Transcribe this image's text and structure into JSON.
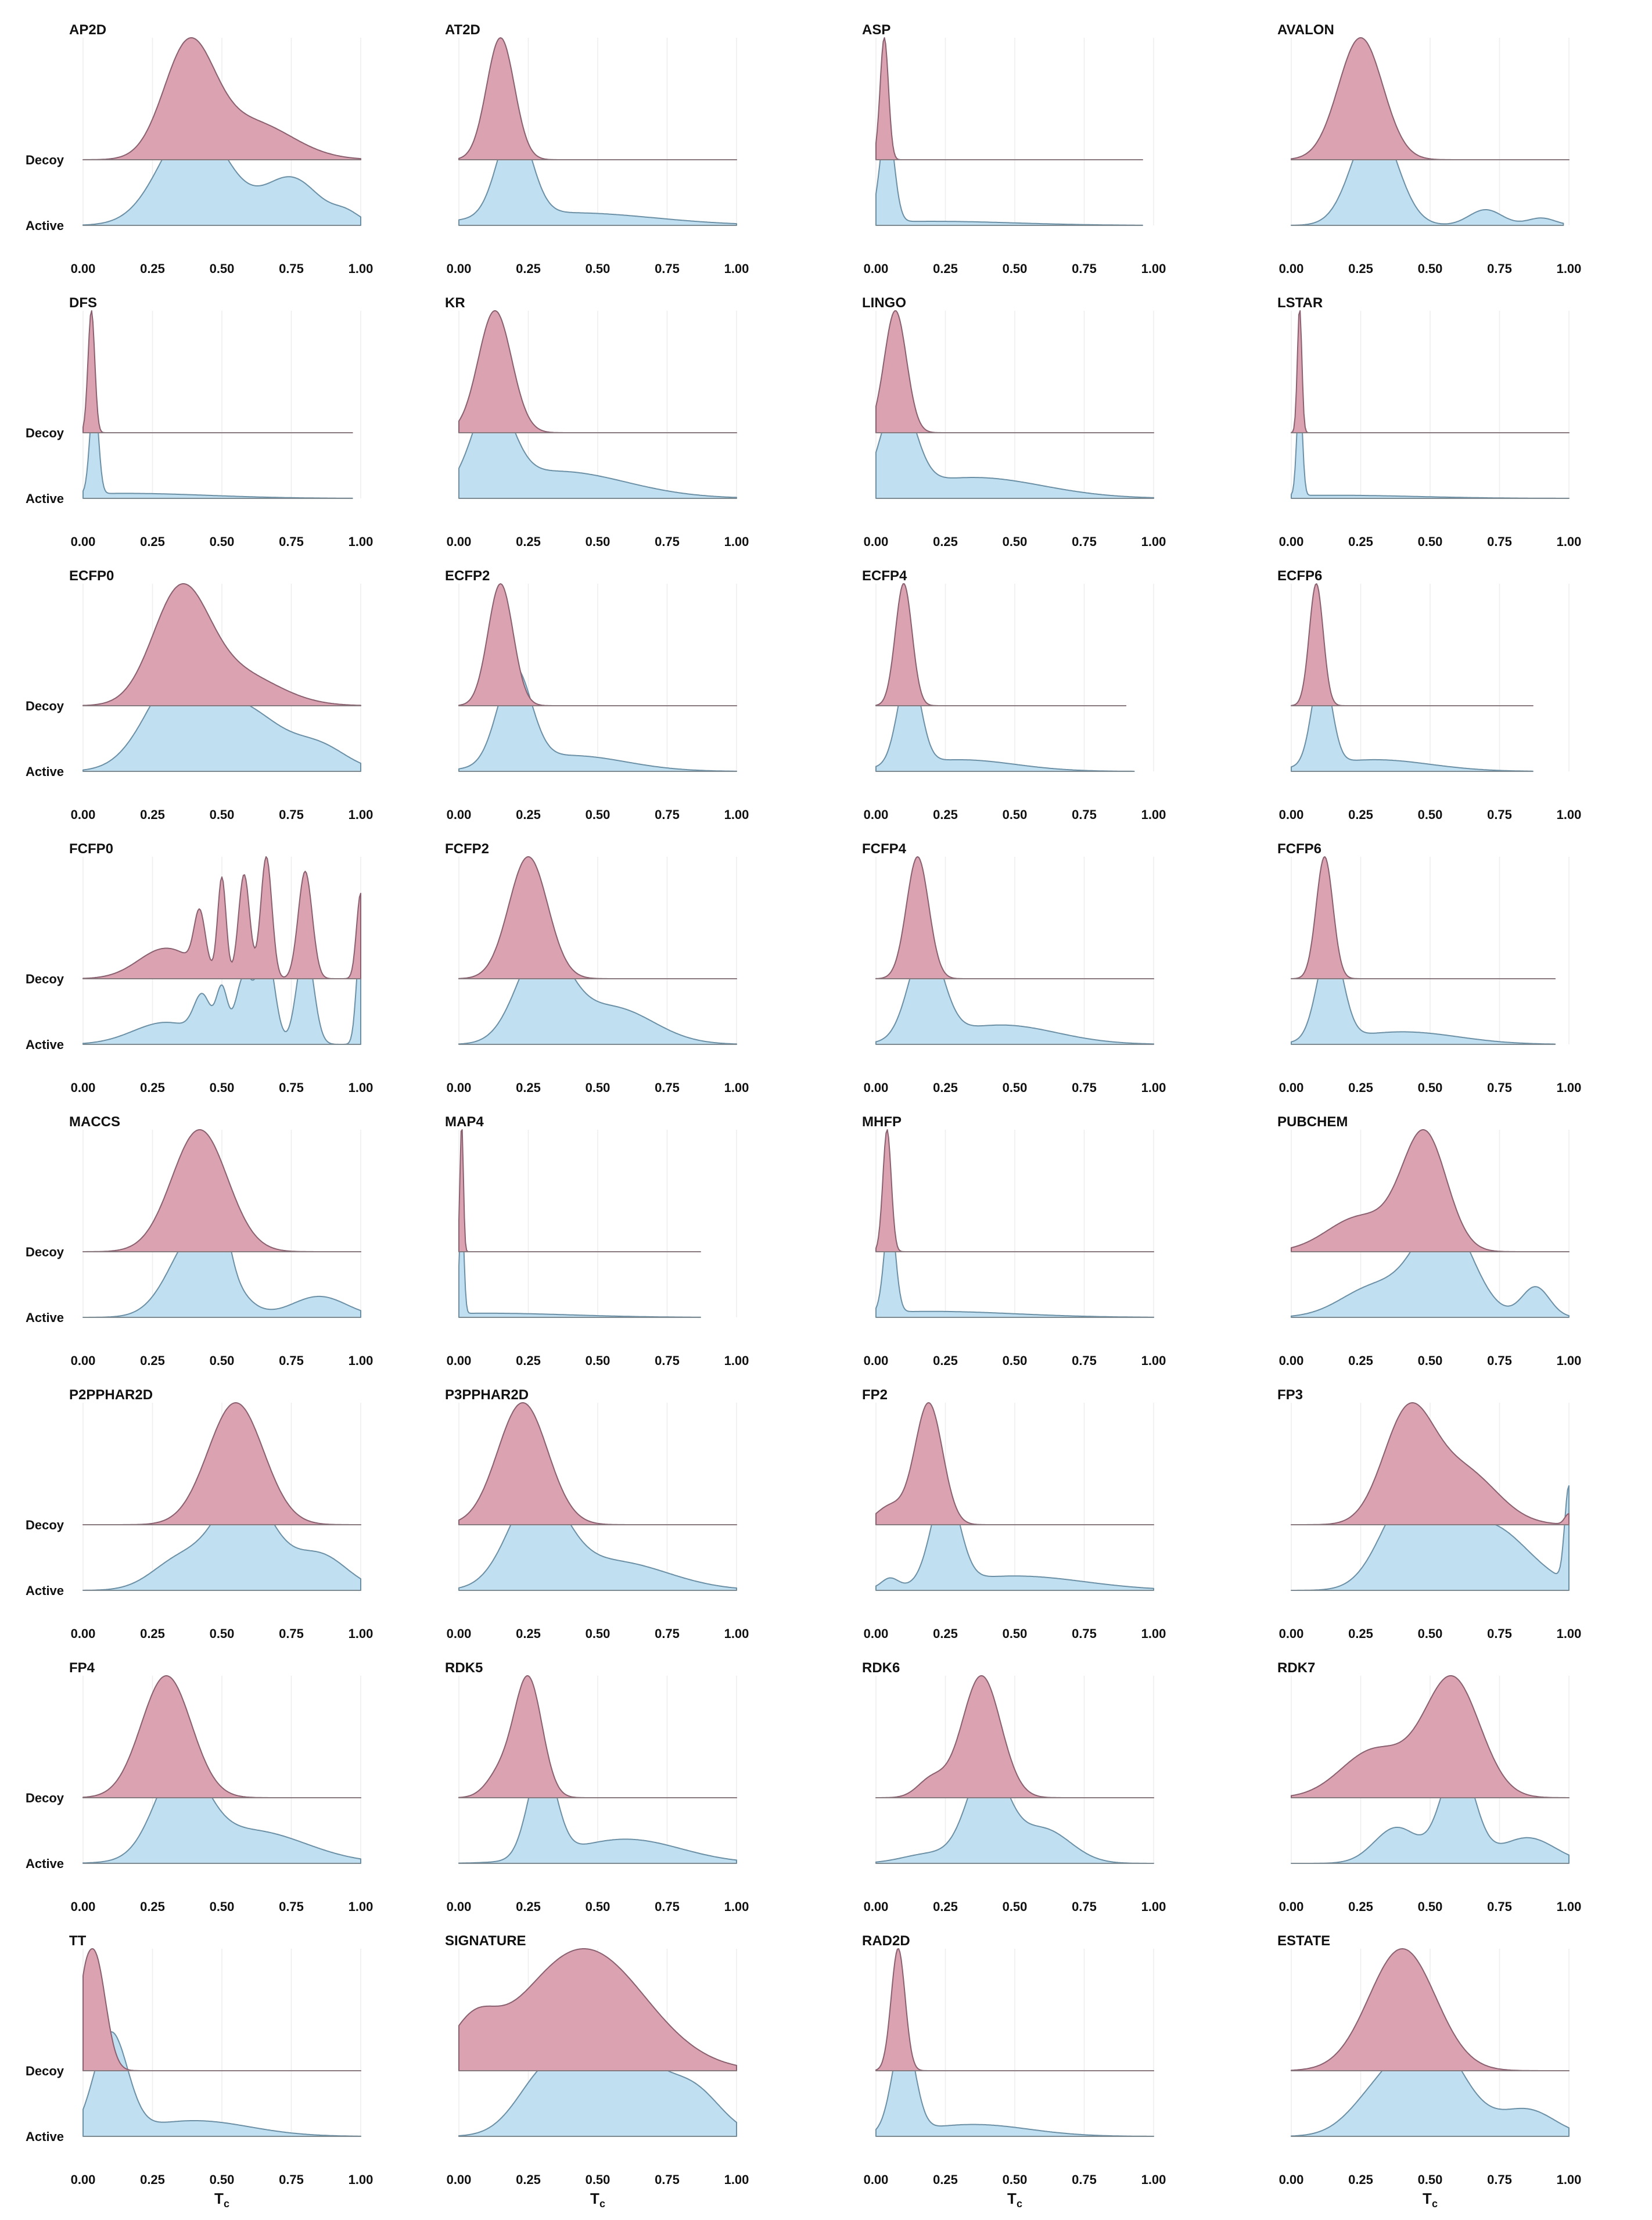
{
  "chart_data": {
    "type": "ridgeline",
    "xlabel": "T",
    "xlabel_sub": "c",
    "xlim": [
      0,
      1
    ],
    "xticks": [
      "0.00",
      "0.25",
      "0.50",
      "0.75",
      "1.00"
    ],
    "rows": [
      "Decoy",
      "Active"
    ],
    "colors": {
      "decoy": "#dba3b1",
      "active": "#c0e0f2",
      "overlap": "#b3a6c4"
    },
    "panels": [
      {
        "title": "AP2D",
        "decoy": {
          "xmax": 1.0,
          "peaks": [
            [
              0.38,
              0.09,
              1.0
            ],
            [
              0.6,
              0.15,
              0.35
            ]
          ]
        },
        "active": {
          "xmax": 1.0,
          "tail": [
            0.95,
            0.05,
            0.1
          ],
          "peaks": [
            [
              0.4,
              0.12,
              1.0
            ],
            [
              0.75,
              0.1,
              0.45
            ],
            [
              0.95,
              0.05,
              0.1
            ]
          ]
        }
      },
      {
        "title": "AT2D",
        "decoy": {
          "xmax": 1.0,
          "peaks": [
            [
              0.15,
              0.05,
              1.0
            ]
          ]
        },
        "active": {
          "xmax": 1.0,
          "peaks": [
            [
              0.2,
              0.06,
              0.9
            ],
            [
              0.4,
              0.3,
              0.12
            ]
          ]
        }
      },
      {
        "title": "ASP",
        "decoy": {
          "xmax": 0.96,
          "peaks": [
            [
              0.03,
              0.015,
              1.0
            ]
          ]
        },
        "active": {
          "xmax": 0.96,
          "peaks": [
            [
              0.04,
              0.025,
              1.0
            ],
            [
              0.2,
              0.3,
              0.04
            ]
          ]
        }
      },
      {
        "title": "AVALON",
        "decoy": {
          "xmax": 1.0,
          "peaks": [
            [
              0.25,
              0.08,
              1.0
            ]
          ]
        },
        "active": {
          "xmax": 0.98,
          "peaks": [
            [
              0.3,
              0.08,
              1.0
            ],
            [
              0.7,
              0.06,
              0.15
            ],
            [
              0.9,
              0.05,
              0.07
            ]
          ]
        }
      },
      {
        "title": "DFS",
        "decoy": {
          "xmax": 0.97,
          "peaks": [
            [
              0.03,
              0.012,
              1.0
            ]
          ]
        },
        "active": {
          "xmax": 0.97,
          "peaks": [
            [
              0.04,
              0.015,
              1.0
            ],
            [
              0.15,
              0.3,
              0.05
            ]
          ]
        }
      },
      {
        "title": "KR",
        "decoy": {
          "xmax": 1.0,
          "peaks": [
            [
              0.13,
              0.06,
              1.0
            ]
          ]
        },
        "active": {
          "xmax": 1.0,
          "peaks": [
            [
              0.12,
              0.07,
              0.8
            ],
            [
              0.35,
              0.25,
              0.25
            ]
          ]
        }
      },
      {
        "title": "LINGO",
        "decoy": {
          "xmax": 1.0,
          "peaks": [
            [
              0.07,
              0.04,
              1.0
            ]
          ]
        },
        "active": {
          "xmax": 1.0,
          "peaks": [
            [
              0.08,
              0.06,
              0.8
            ],
            [
              0.35,
              0.25,
              0.18
            ]
          ]
        }
      },
      {
        "title": "LSTAR",
        "decoy": {
          "xmax": 1.0,
          "peaks": [
            [
              0.03,
              0.008,
              1.0
            ]
          ]
        },
        "active": {
          "xmax": 1.0,
          "peaks": [
            [
              0.03,
              0.01,
              1.0
            ],
            [
              0.15,
              0.3,
              0.03
            ]
          ]
        }
      },
      {
        "title": "ECFP0",
        "decoy": {
          "xmax": 1.0,
          "peaks": [
            [
              0.35,
              0.1,
              1.0
            ],
            [
              0.55,
              0.15,
              0.3
            ]
          ]
        },
        "active": {
          "xmax": 1.0,
          "peaks": [
            [
              0.35,
              0.12,
              1.0
            ],
            [
              0.6,
              0.12,
              0.55
            ],
            [
              0.85,
              0.1,
              0.25
            ]
          ]
        }
      },
      {
        "title": "ECFP2",
        "decoy": {
          "xmax": 1.0,
          "peaks": [
            [
              0.15,
              0.045,
              1.0
            ]
          ]
        },
        "active": {
          "xmax": 1.0,
          "peaks": [
            [
              0.2,
              0.06,
              0.9
            ],
            [
              0.4,
              0.2,
              0.15
            ]
          ]
        }
      },
      {
        "title": "ECFP4",
        "decoy": {
          "xmax": 0.9,
          "peaks": [
            [
              0.1,
              0.03,
              1.0
            ]
          ]
        },
        "active": {
          "xmax": 0.93,
          "peaks": [
            [
              0.12,
              0.04,
              1.0
            ],
            [
              0.3,
              0.2,
              0.12
            ]
          ]
        }
      },
      {
        "title": "ECFP6",
        "decoy": {
          "xmax": 0.87,
          "peaks": [
            [
              0.09,
              0.025,
              1.0
            ]
          ]
        },
        "active": {
          "xmax": 0.87,
          "peaks": [
            [
              0.11,
              0.035,
              1.0
            ],
            [
              0.3,
              0.2,
              0.12
            ]
          ]
        }
      },
      {
        "title": "FCFP0",
        "decoy": {
          "xmax": 1.0,
          "peaks": [
            [
              0.3,
              0.1,
              0.25
            ],
            [
              0.42,
              0.02,
              0.45
            ],
            [
              0.5,
              0.015,
              0.8
            ],
            [
              0.58,
              0.02,
              0.85
            ],
            [
              0.66,
              0.02,
              1.0
            ],
            [
              0.8,
              0.025,
              0.88
            ],
            [
              1.0,
              0.015,
              0.7
            ]
          ]
        },
        "active": {
          "xmax": 1.0,
          "peaks": [
            [
              0.3,
              0.12,
              0.2
            ],
            [
              0.43,
              0.03,
              0.35
            ],
            [
              0.5,
              0.02,
              0.45
            ],
            [
              0.58,
              0.03,
              0.6
            ],
            [
              0.66,
              0.03,
              0.85
            ],
            [
              0.8,
              0.03,
              0.9
            ],
            [
              1.0,
              0.015,
              0.95
            ]
          ]
        }
      },
      {
        "title": "FCFP2",
        "decoy": {
          "xmax": 1.0,
          "peaks": [
            [
              0.25,
              0.07,
              1.0
            ]
          ]
        },
        "active": {
          "xmax": 1.0,
          "peaks": [
            [
              0.3,
              0.09,
              0.9
            ],
            [
              0.55,
              0.15,
              0.35
            ]
          ]
        }
      },
      {
        "title": "FCFP4",
        "decoy": {
          "xmax": 1.0,
          "peaks": [
            [
              0.15,
              0.04,
              1.0
            ]
          ]
        },
        "active": {
          "xmax": 1.0,
          "peaks": [
            [
              0.18,
              0.06,
              0.9
            ],
            [
              0.45,
              0.2,
              0.18
            ]
          ]
        }
      },
      {
        "title": "FCFP6",
        "decoy": {
          "xmax": 0.95,
          "peaks": [
            [
              0.12,
              0.03,
              1.0
            ]
          ]
        },
        "active": {
          "xmax": 0.95,
          "peaks": [
            [
              0.14,
              0.045,
              0.95
            ],
            [
              0.4,
              0.2,
              0.12
            ]
          ]
        }
      },
      {
        "title": "MACCS",
        "decoy": {
          "xmax": 1.0,
          "peaks": [
            [
              0.42,
              0.1,
              1.0
            ]
          ]
        },
        "active": {
          "xmax": 1.0,
          "peaks": [
            [
              0.42,
              0.1,
              0.85
            ],
            [
              0.5,
              0.03,
              0.35
            ],
            [
              0.85,
              0.1,
              0.2
            ]
          ]
        }
      },
      {
        "title": "MAP4",
        "decoy": {
          "xmax": 0.87,
          "peaks": [
            [
              0.01,
              0.006,
              1.0
            ]
          ]
        },
        "active": {
          "xmax": 0.87,
          "peaks": [
            [
              0.01,
              0.008,
              1.0
            ],
            [
              0.1,
              0.3,
              0.04
            ]
          ]
        }
      },
      {
        "title": "MHFP",
        "decoy": {
          "xmax": 1.0,
          "peaks": [
            [
              0.04,
              0.015,
              1.0
            ]
          ]
        },
        "active": {
          "xmax": 1.0,
          "peaks": [
            [
              0.05,
              0.02,
              1.0
            ],
            [
              0.2,
              0.3,
              0.06
            ]
          ]
        }
      },
      {
        "title": "PUBCHEM",
        "decoy": {
          "xmax": 1.0,
          "peaks": [
            [
              0.48,
              0.08,
              1.0
            ],
            [
              0.25,
              0.12,
              0.3
            ]
          ]
        },
        "active": {
          "xmax": 1.0,
          "peaks": [
            [
              0.55,
              0.1,
              1.0
            ],
            [
              0.3,
              0.12,
              0.3
            ],
            [
              0.88,
              0.05,
              0.3
            ]
          ]
        }
      },
      {
        "title": "P2PPHAR2D",
        "decoy": {
          "xmax": 1.0,
          "peaks": [
            [
              0.55,
              0.1,
              1.0
            ]
          ]
        },
        "active": {
          "xmax": 1.0,
          "peaks": [
            [
              0.58,
              0.1,
              1.0
            ],
            [
              0.35,
              0.1,
              0.3
            ],
            [
              0.85,
              0.1,
              0.35
            ]
          ]
        }
      },
      {
        "title": "P3PPHAR2D",
        "decoy": {
          "xmax": 1.0,
          "peaks": [
            [
              0.23,
              0.09,
              1.0
            ]
          ]
        },
        "active": {
          "xmax": 1.0,
          "peaks": [
            [
              0.28,
              0.1,
              0.8
            ],
            [
              0.55,
              0.2,
              0.25
            ]
          ]
        }
      },
      {
        "title": "FP2",
        "decoy": {
          "xmax": 1.0,
          "peaks": [
            [
              0.19,
              0.05,
              1.0
            ],
            [
              0.05,
              0.05,
              0.15
            ]
          ]
        },
        "active": {
          "xmax": 1.0,
          "peaks": [
            [
              0.25,
              0.05,
              1.0
            ],
            [
              0.5,
              0.25,
              0.15
            ],
            [
              0.05,
              0.03,
              0.1
            ]
          ]
        }
      },
      {
        "title": "FP3",
        "decoy": {
          "xmax": 1.0,
          "peaks": [
            [
              0.42,
              0.09,
              1.0
            ],
            [
              0.62,
              0.12,
              0.5
            ],
            [
              1.0,
              0.015,
              0.1
            ]
          ]
        },
        "active": {
          "xmax": 1.0,
          "peaks": [
            [
              0.42,
              0.1,
              0.9
            ],
            [
              0.7,
              0.15,
              0.7
            ],
            [
              1.0,
              0.015,
              1.0
            ]
          ]
        }
      },
      {
        "title": "FP4",
        "decoy": {
          "xmax": 1.0,
          "peaks": [
            [
              0.3,
              0.09,
              1.0
            ]
          ]
        },
        "active": {
          "xmax": 1.0,
          "peaks": [
            [
              0.35,
              0.09,
              0.95
            ],
            [
              0.6,
              0.2,
              0.35
            ]
          ]
        }
      },
      {
        "title": "RDK5",
        "decoy": {
          "xmax": 1.0,
          "peaks": [
            [
              0.25,
              0.05,
              1.0
            ],
            [
              0.15,
              0.05,
              0.2
            ]
          ]
        },
        "active": {
          "xmax": 1.0,
          "peaks": [
            [
              0.3,
              0.05,
              1.0
            ],
            [
              0.6,
              0.2,
              0.25
            ]
          ]
        }
      },
      {
        "title": "RDK6",
        "decoy": {
          "xmax": 1.0,
          "peaks": [
            [
              0.38,
              0.07,
              1.0
            ],
            [
              0.2,
              0.05,
              0.15
            ]
          ]
        },
        "active": {
          "xmax": 1.0,
          "peaks": [
            [
              0.4,
              0.07,
              1.0
            ],
            [
              0.6,
              0.1,
              0.35
            ],
            [
              0.2,
              0.1,
              0.1
            ]
          ]
        }
      },
      {
        "title": "RDK7",
        "decoy": {
          "xmax": 1.0,
          "peaks": [
            [
              0.58,
              0.1,
              1.0
            ],
            [
              0.3,
              0.12,
              0.4
            ]
          ]
        },
        "active": {
          "xmax": 1.0,
          "peaks": [
            [
              0.6,
              0.06,
              1.0
            ],
            [
              0.38,
              0.08,
              0.35
            ],
            [
              0.85,
              0.1,
              0.25
            ]
          ]
        }
      },
      {
        "title": "TT",
        "decoy": {
          "xmax": 1.0,
          "peaks": [
            [
              0.04,
              0.04,
              1.0
            ],
            [
              0.0,
              0.02,
              0.2
            ]
          ]
        },
        "active": {
          "xmax": 1.0,
          "peaks": [
            [
              0.1,
              0.06,
              0.95
            ],
            [
              0.4,
              0.2,
              0.15
            ]
          ]
        }
      },
      {
        "title": "SIGNATURE",
        "decoy": {
          "xmax": 1.0,
          "peaks": [
            [
              0.45,
              0.22,
              1.0
            ],
            [
              0.05,
              0.08,
              0.3
            ]
          ]
        },
        "active": {
          "xmax": 1.0,
          "peaks": [
            [
              0.55,
              0.15,
              0.9
            ],
            [
              0.3,
              0.1,
              0.4
            ],
            [
              0.85,
              0.1,
              0.35
            ]
          ]
        }
      },
      {
        "title": "RAD2D",
        "decoy": {
          "xmax": 1.0,
          "peaks": [
            [
              0.08,
              0.025,
              1.0
            ]
          ]
        },
        "active": {
          "xmax": 1.0,
          "peaks": [
            [
              0.1,
              0.04,
              1.0
            ],
            [
              0.35,
              0.2,
              0.12
            ]
          ]
        }
      },
      {
        "title": "ESTATE",
        "decoy": {
          "xmax": 1.0,
          "peaks": [
            [
              0.4,
              0.12,
              1.0
            ]
          ]
        },
        "active": {
          "xmax": 1.0,
          "peaks": [
            [
              0.5,
              0.12,
              0.95
            ],
            [
              0.3,
              0.1,
              0.3
            ],
            [
              0.85,
              0.1,
              0.25
            ]
          ]
        }
      }
    ]
  }
}
